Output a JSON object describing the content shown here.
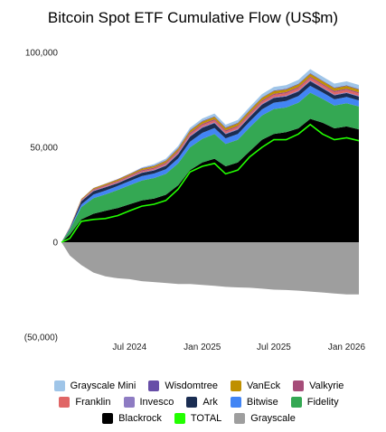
{
  "chart_data": {
    "type": "area",
    "title": "Bitcoin Spot ETF Cumulative Flow (US$m)",
    "y_ticks": [
      "100,000",
      "50,000",
      "0",
      "(50,000)"
    ],
    "y_tick_values": [
      100000,
      50000,
      0,
      -50000
    ],
    "ylim": [
      -50000,
      100000
    ],
    "x_ticks": [
      {
        "label": "Jul 2024",
        "value": "2024-07-01"
      },
      {
        "label": "Jan 2025",
        "value": "2025-01-01"
      },
      {
        "label": "Jul 2025",
        "value": "2025-07-01"
      },
      {
        "label": "Jan 2026",
        "value": "2026-01-01"
      }
    ],
    "xlim": [
      "2024-01-11",
      "2026-02-01"
    ],
    "grid": false,
    "legend_position": "bottom",
    "x": [
      "2024-01-11",
      "2024-02-01",
      "2024-03-01",
      "2024-04-01",
      "2024-05-01",
      "2024-06-01",
      "2024-07-01",
      "2024-08-01",
      "2024-09-01",
      "2024-10-01",
      "2024-11-01",
      "2024-12-01",
      "2025-01-01",
      "2025-02-01",
      "2025-03-01",
      "2025-04-01",
      "2025-05-01",
      "2025-06-01",
      "2025-07-01",
      "2025-08-01",
      "2025-09-01",
      "2025-10-01",
      "2025-11-01",
      "2025-12-01",
      "2026-01-01",
      "2026-02-01"
    ],
    "series": [
      {
        "name": "Grayscale",
        "color": "#9e9e9e",
        "values": [
          0,
          -7000,
          -12000,
          -16000,
          -18000,
          -19000,
          -19500,
          -20500,
          -21000,
          -21500,
          -22000,
          -22000,
          -22500,
          -23000,
          -23500,
          -23800,
          -24000,
          -24500,
          -25000,
          -25200,
          -25500,
          -26000,
          -26500,
          -27000,
          -27500,
          -27500
        ]
      },
      {
        "name": "Blackrock",
        "color": "#000000",
        "values": [
          0,
          4000,
          12000,
          15000,
          16500,
          18000,
          20000,
          22000,
          23000,
          25000,
          30000,
          38000,
          42000,
          44000,
          40000,
          42000,
          48000,
          54000,
          57000,
          58000,
          60000,
          65000,
          63000,
          60000,
          61000,
          59500
        ]
      },
      {
        "name": "Fidelity",
        "color": "#34a853",
        "values": [
          0,
          2500,
          6500,
          8200,
          8700,
          9500,
          10000,
          10500,
          10800,
          11000,
          11500,
          12000,
          12500,
          13000,
          11800,
          12000,
          12500,
          12800,
          13200,
          13000,
          13500,
          13800,
          12500,
          12000,
          12200,
          12000
        ]
      },
      {
        "name": "Bitwise",
        "color": "#4285f4",
        "values": [
          0,
          400,
          1400,
          1900,
          2000,
          2100,
          2200,
          2300,
          2400,
          2500,
          2700,
          3000,
          3100,
          3200,
          2900,
          3000,
          3100,
          3200,
          3300,
          3400,
          3500,
          3600,
          3400,
          3300,
          3300,
          3200
        ]
      },
      {
        "name": "Ark",
        "color": "#1a2d52",
        "values": [
          0,
          500,
          1600,
          1800,
          1700,
          1500,
          1600,
          1700,
          1600,
          1800,
          2200,
          2600,
          2700,
          2500,
          2200,
          2300,
          2400,
          2500,
          2500,
          2400,
          2400,
          2500,
          2200,
          2100,
          2100,
          2000
        ]
      },
      {
        "name": "Invesco",
        "color": "#8e7cc3",
        "values": [
          0,
          150,
          300,
          300,
          300,
          300,
          300,
          350,
          350,
          400,
          450,
          500,
          500,
          500,
          450,
          450,
          450,
          450,
          450,
          450,
          450,
          450,
          450,
          420,
          420,
          420
        ]
      },
      {
        "name": "Franklin",
        "color": "#e06666",
        "values": [
          0,
          100,
          250,
          300,
          350,
          400,
          450,
          500,
          550,
          600,
          700,
          800,
          850,
          900,
          900,
          950,
          1000,
          1050,
          1100,
          1150,
          1200,
          1250,
          1200,
          1200,
          1200,
          1200
        ]
      },
      {
        "name": "Valkyrie",
        "color": "#a64d79",
        "values": [
          0,
          100,
          300,
          400,
          500,
          500,
          550,
          600,
          600,
          650,
          700,
          750,
          750,
          750,
          700,
          700,
          700,
          700,
          700,
          700,
          700,
          700,
          700,
          700,
          700,
          700
        ]
      },
      {
        "name": "VanEck",
        "color": "#bf9000",
        "values": [
          0,
          150,
          400,
          550,
          650,
          700,
          750,
          800,
          850,
          900,
          1000,
          1100,
          1150,
          1200,
          1200,
          1200,
          1250,
          1300,
          1350,
          1350,
          1400,
          1450,
          1400,
          1400,
          1400,
          1400
        ]
      },
      {
        "name": "Wisdomtree",
        "color": "#674ea7",
        "values": [
          0,
          20,
          50,
          100,
          150,
          200,
          250,
          300,
          300,
          300,
          350,
          350,
          350,
          350,
          350,
          350,
          350,
          350,
          350,
          350,
          350,
          350,
          350,
          350,
          350,
          350
        ]
      },
      {
        "name": "Grayscale Mini",
        "color": "#9fc5e8",
        "values": [
          0,
          0,
          0,
          0,
          0,
          0,
          0,
          400,
          700,
          900,
          1100,
          1200,
          1300,
          1400,
          1400,
          1500,
          1600,
          1700,
          1800,
          1900,
          2000,
          2100,
          2100,
          2100,
          2100,
          2100
        ]
      },
      {
        "name": "TOTAL",
        "color": "#22ff00",
        "type": "line",
        "values": [
          0,
          2000,
          11000,
          12000,
          12500,
          14000,
          16500,
          19000,
          20000,
          22000,
          28000,
          37000,
          40000,
          41500,
          36000,
          38000,
          45000,
          50000,
          54000,
          54000,
          57000,
          62000,
          57000,
          54000,
          55000,
          53500
        ]
      }
    ]
  },
  "legend": {
    "rows": [
      [
        "Grayscale Mini",
        "Wisdomtree",
        "VanEck",
        "Valkyrie"
      ],
      [
        "Franklin",
        "Invesco",
        "Ark",
        "Bitwise",
        "Fidelity"
      ],
      [
        "Blackrock",
        "TOTAL",
        "Grayscale"
      ]
    ]
  }
}
